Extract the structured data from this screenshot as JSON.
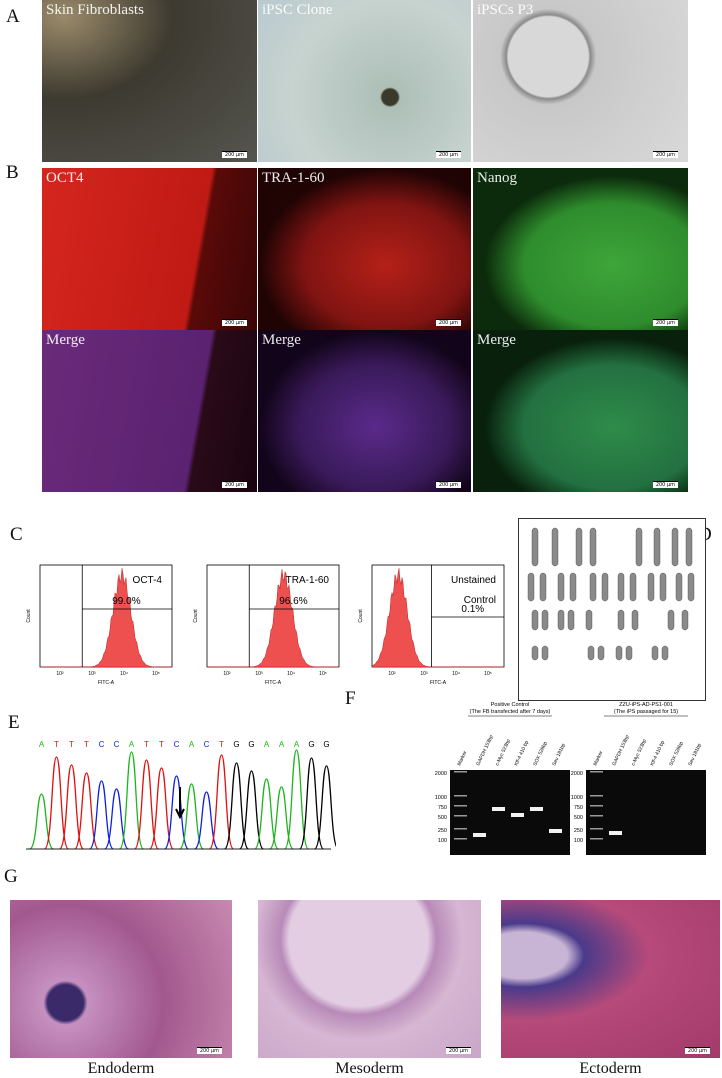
{
  "panel_labels": [
    "A",
    "B",
    "C",
    "D",
    "E",
    "F",
    "G"
  ],
  "scale_bar": "200 μm",
  "panel_a": {
    "captions": [
      "Skin Fibroblasts",
      "iPSC Clone",
      "iPSCs P3"
    ]
  },
  "panel_b": {
    "captions": [
      "OCT4",
      "TRA-1-60",
      "Nanog",
      "Merge",
      "Merge",
      "Merge"
    ]
  },
  "panel_c": {
    "x_axis_label": "FITC-A",
    "y_axis_label": "Count",
    "x_ticks": [
      "10²",
      "10³",
      "10⁴",
      "10⁵"
    ],
    "plots": [
      {
        "marker": "OCT-4",
        "percent": "99.0%"
      },
      {
        "marker": "TRA-1-60",
        "percent": "96.6%"
      },
      {
        "marker": "Unstained Control",
        "percent": "0.1%"
      }
    ]
  },
  "panel_e": {
    "sequence": [
      "A",
      "T",
      "T",
      "T",
      "C",
      "C",
      "A",
      "T",
      "T",
      "C",
      "A",
      "C",
      "T",
      "G",
      "G",
      "A",
      "A",
      "A",
      "G",
      "G"
    ]
  },
  "panel_f": {
    "ladder": [
      "2000",
      "1000",
      "750",
      "500",
      "250",
      "100"
    ],
    "gels": [
      {
        "title": "Positive Control",
        "subtitle": "(The FB transfected after 7 days)",
        "lanes": [
          "Marker",
          "GAPDH 153bp",
          "c-Myc 523bp",
          "Klf-4 410 bp",
          "SOX 528bp",
          "Sev 181bp"
        ]
      },
      {
        "title": "ZZU-iPS-AD-PS1-001",
        "subtitle": "(The iPS passaged for 15)",
        "lanes": [
          "Marker",
          "GAPDH 153bp",
          "c-Myc 523bp",
          "Klf-4 410 bp",
          "SOX 528bp",
          "Sev 181bp"
        ]
      }
    ]
  },
  "panel_g": {
    "captions": [
      "Endoderm",
      "Mesoderm",
      "Ectoderm"
    ]
  }
}
